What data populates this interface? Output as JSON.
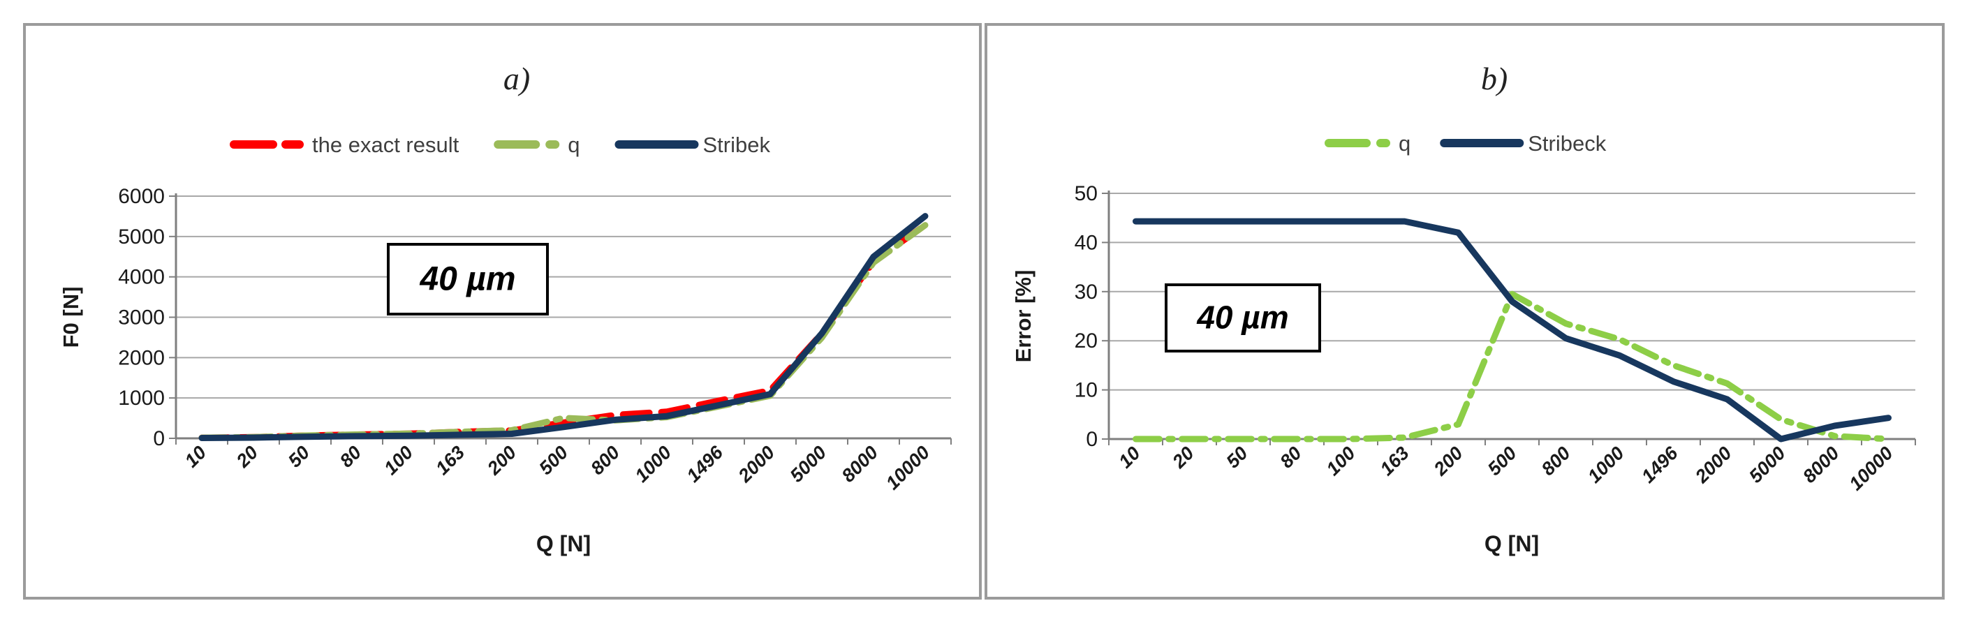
{
  "figure": {
    "panel_a_title": "a)",
    "panel_b_title": "b)",
    "annotation_a": "40 µm",
    "annotation_b": "40 µm"
  },
  "chart_data": [
    {
      "type": "line",
      "id": "a",
      "title": "a)",
      "annotation": "40 µm",
      "xlabel": "Q [N]",
      "ylabel": "F0 [N]",
      "ylim": [
        0,
        6000
      ],
      "y_tick_labels": [
        "0",
        "1000",
        "2000",
        "3000",
        "4000",
        "5000",
        "6000"
      ],
      "categories": [
        "10",
        "20",
        "50",
        "80",
        "100",
        "163",
        "200",
        "500",
        "800",
        "1000",
        "1496",
        "2000",
        "5000",
        "8000",
        "10000"
      ],
      "grid": true,
      "legend_position": "top",
      "series": [
        {
          "name": "the exact result",
          "color": "#FE0000",
          "line_style": "dashed",
          "values": [
            15,
            30,
            70,
            95,
            115,
            160,
            195,
            390,
            580,
            660,
            930,
            1190,
            2600,
            4380,
            5280
          ]
        },
        {
          "name": "q",
          "color": "#9BBB59",
          "line_style": "dash-dot",
          "values": [
            15,
            30,
            70,
            95,
            115,
            160,
            200,
            505,
            445,
            525,
            790,
            1055,
            2495,
            4355,
            5280
          ]
        },
        {
          "name": "Stribek",
          "color": "#17375E",
          "line_style": "solid",
          "values": [
            8,
            17,
            39,
            53,
            64,
            89,
            113,
            280,
            460,
            550,
            820,
            1095,
            2600,
            4500,
            5505
          ]
        }
      ]
    },
    {
      "type": "line",
      "id": "b",
      "title": "b)",
      "annotation": "40 µm",
      "xlabel": "Q [N]",
      "ylabel": "Error  [%]",
      "ylim": [
        0,
        50
      ],
      "y_tick_labels": [
        "0",
        "10",
        "20",
        "30",
        "40",
        "50"
      ],
      "categories": [
        "10",
        "20",
        "50",
        "80",
        "100",
        "163",
        "200",
        "500",
        "800",
        "1000",
        "1496",
        "2000",
        "5000",
        "8000",
        "10000"
      ],
      "grid": true,
      "legend_position": "top",
      "series": [
        {
          "name": "q",
          "color": "#8DCE47",
          "line_style": "dash-dot",
          "values": [
            0,
            0,
            0,
            0,
            0,
            0.3,
            3,
            29.5,
            23.5,
            20.3,
            15,
            11.3,
            4,
            0.6,
            0
          ]
        },
        {
          "name": "Stribeck",
          "color": "#17375E",
          "line_style": "solid",
          "values": [
            44.3,
            44.3,
            44.3,
            44.3,
            44.3,
            44.3,
            42,
            28,
            20.5,
            17,
            11.7,
            8.1,
            0,
            2.7,
            4.3
          ]
        }
      ]
    }
  ]
}
